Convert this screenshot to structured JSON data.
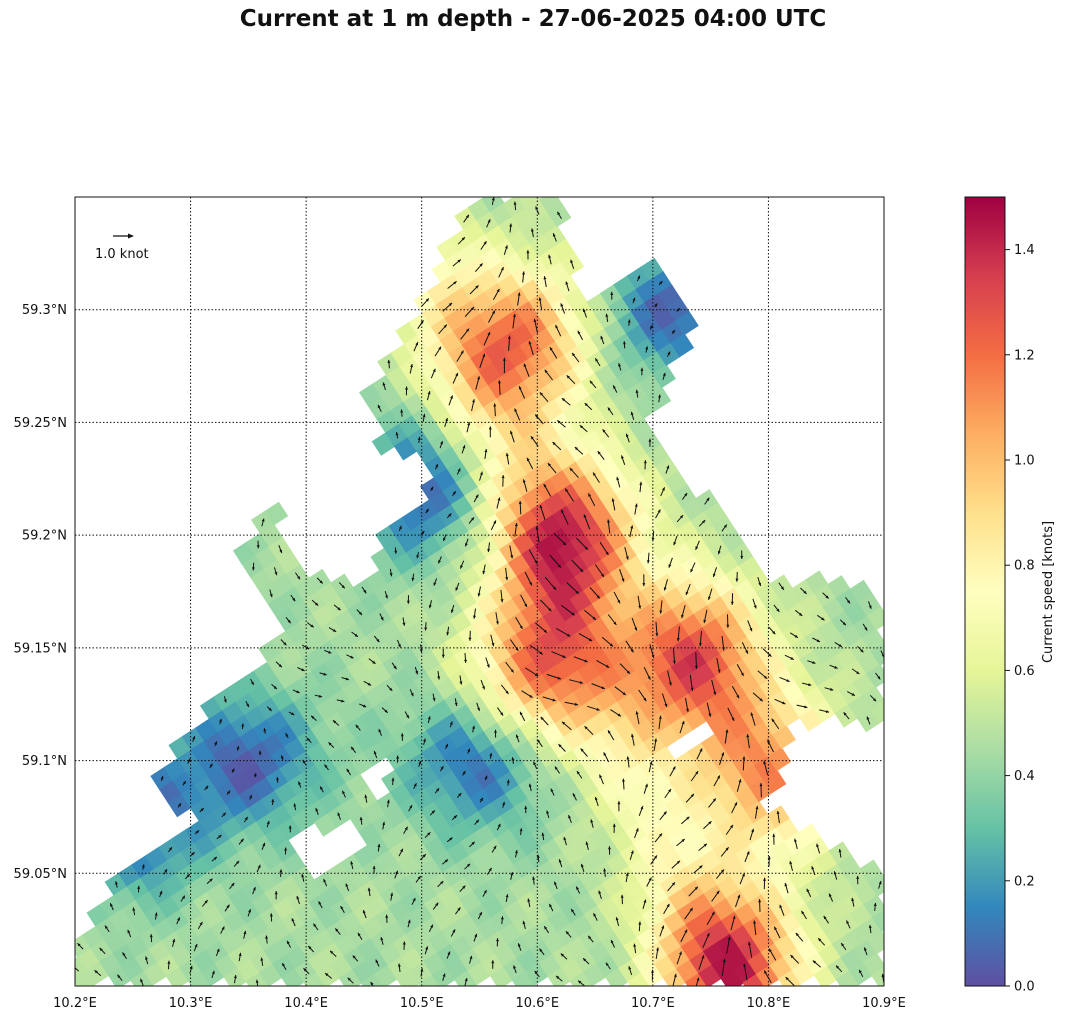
{
  "chart_data": {
    "type": "heatmap",
    "title": "Current at 1 m depth - 27-06-2025 04:00 UTC",
    "xlabel": "",
    "ylabel": "",
    "xlim": [
      10.2,
      10.9
    ],
    "ylim": [
      59.0,
      59.35
    ],
    "x_ticks": [
      "10.2°E",
      "10.3°E",
      "10.4°E",
      "10.5°E",
      "10.6°E",
      "10.7°E",
      "10.8°E",
      "10.9°E"
    ],
    "y_ticks": [
      "59.05°N",
      "59.1°N",
      "59.15°N",
      "59.2°N",
      "59.25°N",
      "59.3°N"
    ],
    "grid": true,
    "grid_style": "dotted",
    "reference_vector": {
      "label": "1.0 knot",
      "value": 1.0,
      "placement": "top-left"
    },
    "colorbar": {
      "label": "Current speed [knots]",
      "range": [
        0.0,
        1.5
      ],
      "ticks": [
        "0.0",
        "0.2",
        "0.4",
        "0.6",
        "0.8",
        "1.0",
        "1.2",
        "1.4"
      ],
      "colormap": "Spectral_r",
      "colors": [
        "#5e4fa2",
        "#3288bd",
        "#66c2a5",
        "#abdda4",
        "#e6f598",
        "#ffffbf",
        "#fee08b",
        "#fdae61",
        "#f46d43",
        "#d53e4f",
        "#9e0142"
      ]
    },
    "hotspots": [
      {
        "lon": 10.63,
        "lat": 59.2,
        "speed": 1.25
      },
      {
        "lon": 10.735,
        "lat": 59.145,
        "speed": 1.3
      },
      {
        "lon": 10.585,
        "lat": 59.285,
        "speed": 1.15
      },
      {
        "lon": 10.77,
        "lat": 59.01,
        "speed": 1.25
      },
      {
        "lon": 10.6,
        "lat": 59.14,
        "speed": 1.1
      },
      {
        "lon": 10.8,
        "lat": 59.095,
        "speed": 1.1
      }
    ],
    "calm_zones": [
      {
        "lon": 10.55,
        "lat": 59.1,
        "speed": 0.05
      },
      {
        "lon": 10.35,
        "lat": 59.1,
        "speed": 0.05
      },
      {
        "lon": 10.25,
        "lat": 59.07,
        "speed": 0.05
      },
      {
        "lon": 10.5,
        "lat": 59.22,
        "speed": 0.1
      },
      {
        "lon": 10.72,
        "lat": 59.3,
        "speed": 0.1
      }
    ]
  }
}
